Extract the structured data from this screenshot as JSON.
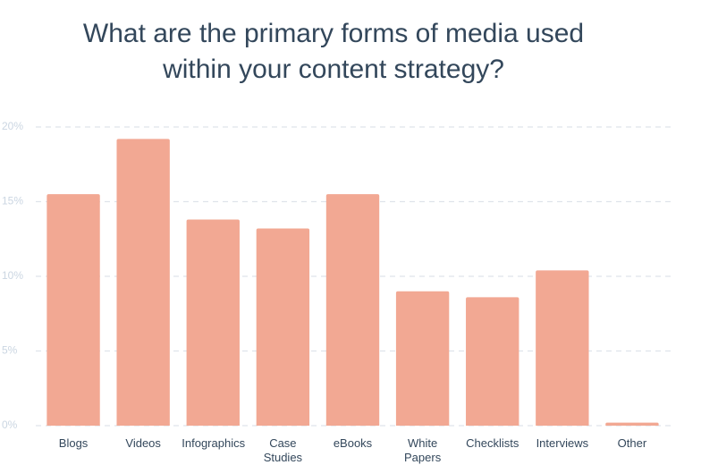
{
  "chart_data": {
    "type": "bar",
    "title": "What are the primary forms of media used within your content strategy?",
    "categories": [
      "Blogs",
      "Videos",
      "Infographics",
      "Case Studies",
      "eBooks",
      "White Papers",
      "Checklists",
      "Interviews",
      "Other"
    ],
    "values": [
      15.5,
      19.2,
      13.8,
      13.2,
      15.5,
      9.0,
      8.6,
      10.4,
      0.2
    ],
    "color": "#f2a893",
    "ylim": [
      0,
      20
    ],
    "yticks": [
      {
        "value": 0,
        "label": "0%"
      },
      {
        "value": 5,
        "label": "5%"
      },
      {
        "value": 10,
        "label": "10%"
      },
      {
        "value": 15,
        "label": "15%"
      },
      {
        "value": 20,
        "label": "20%"
      }
    ],
    "grid": true
  }
}
